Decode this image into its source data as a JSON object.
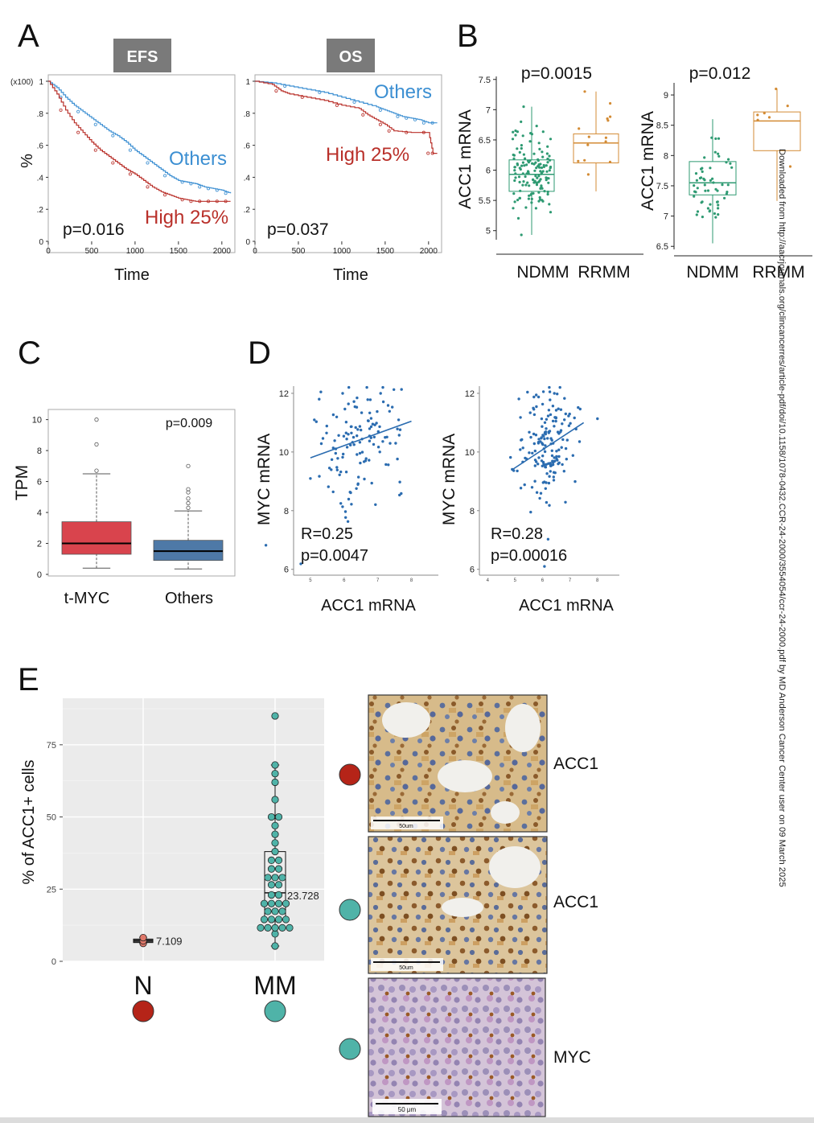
{
  "panel_letters": [
    "A",
    "B",
    "C",
    "D",
    "E"
  ],
  "colors": {
    "others_blue": "#3c8fd2",
    "high_red": "#b9302a",
    "ndmm_green": "#2e9a72",
    "rrmm_orange": "#d38b34",
    "tmyc_red": "#d9444d",
    "others_box": "#4e79a7",
    "scatter_blue": "#2b6cb0",
    "n_dot": "#b52418",
    "mm_dot": "#4fb3a8",
    "tag_gray": "#7a7a7a"
  },
  "side_note": "Downloaded from http://aacrjournals.org/clincancerres/article-pdf/doi/10.1158/1078-0432.CCR-24-2000/3554054/ccr-24-2000.pdf by MD Anderson Cancer Center user on 09 March 2025",
  "chart_data": [
    {
      "panel": "A",
      "type": "line",
      "tag": "EFS",
      "xlabel": "Time",
      "ylabel": "%",
      "y_multiplier_label": "(x100)",
      "xlim": [
        0,
        2150
      ],
      "ylim": [
        0,
        1
      ],
      "x_ticks": [
        "0",
        "500",
        "1000",
        "1500",
        "2000"
      ],
      "y_ticks": [
        "0",
        ".2",
        ".4",
        ".6",
        ".8",
        "1"
      ],
      "pvalue": "p=0.016",
      "series": [
        {
          "name": "Others",
          "color": "#3c8fd2",
          "x": [
            0,
            100,
            200,
            300,
            400,
            500,
            600,
            700,
            800,
            900,
            1000,
            1100,
            1200,
            1300,
            1400,
            1500,
            1600,
            1700,
            1800,
            1900,
            2000,
            2100
          ],
          "y": [
            1.0,
            0.96,
            0.9,
            0.85,
            0.81,
            0.77,
            0.73,
            0.69,
            0.66,
            0.62,
            0.57,
            0.53,
            0.49,
            0.45,
            0.41,
            0.38,
            0.37,
            0.36,
            0.34,
            0.33,
            0.32,
            0.3
          ]
        },
        {
          "name": "High 25%",
          "color": "#b9302a",
          "x": [
            0,
            100,
            200,
            300,
            400,
            500,
            600,
            700,
            800,
            900,
            1000,
            1100,
            1200,
            1300,
            1400,
            1500,
            1600,
            1700,
            1800,
            1900,
            2000,
            2100
          ],
          "y": [
            1.0,
            0.92,
            0.82,
            0.74,
            0.68,
            0.62,
            0.57,
            0.53,
            0.49,
            0.45,
            0.42,
            0.38,
            0.34,
            0.31,
            0.29,
            0.27,
            0.26,
            0.25,
            0.25,
            0.25,
            0.25,
            0.25
          ]
        }
      ]
    },
    {
      "panel": "A",
      "type": "line",
      "tag": "OS",
      "xlabel": "Time",
      "ylabel": "",
      "xlim": [
        0,
        2150
      ],
      "ylim": [
        0,
        1
      ],
      "x_ticks": [
        "0",
        "500",
        "1000",
        "1500",
        "2000"
      ],
      "y_ticks": [
        "0",
        ".2",
        ".4",
        ".6",
        ".8",
        "1"
      ],
      "pvalue": "p=0.037",
      "series": [
        {
          "name": "Others",
          "color": "#3c8fd2",
          "x": [
            0,
            200,
            400,
            600,
            800,
            1000,
            1200,
            1400,
            1500,
            1600,
            1700,
            1800,
            1900,
            2000,
            2100
          ],
          "y": [
            1.0,
            0.99,
            0.97,
            0.95,
            0.93,
            0.9,
            0.87,
            0.84,
            0.82,
            0.8,
            0.78,
            0.77,
            0.76,
            0.74,
            0.74
          ]
        },
        {
          "name": "High 25%",
          "color": "#b9302a",
          "x": [
            0,
            200,
            300,
            400,
            600,
            800,
            1000,
            1200,
            1300,
            1400,
            1500,
            1600,
            1800,
            2000,
            2050,
            2100
          ],
          "y": [
            1.0,
            0.98,
            0.94,
            0.92,
            0.9,
            0.88,
            0.85,
            0.83,
            0.79,
            0.76,
            0.73,
            0.69,
            0.68,
            0.68,
            0.55,
            0.55
          ]
        }
      ]
    },
    {
      "panel": "B",
      "type": "box",
      "ylabel": "ACC1 mRNA",
      "pvalue": "p=0.0015",
      "ylim": [
        4.85,
        7.55
      ],
      "y_ticks": [
        "5",
        "5.5",
        "6",
        "6.5",
        "7",
        "7.5"
      ],
      "categories": [
        "NDMM",
        "RRMM"
      ],
      "boxes": [
        {
          "name": "NDMM",
          "color": "#2e9a72",
          "q1": 5.65,
          "median": 5.93,
          "q3": 6.17,
          "whisker_low": 4.93,
          "whisker_high": 7.05,
          "n_points": 140
        },
        {
          "name": "RRMM",
          "color": "#d38b34",
          "q1": 6.12,
          "median": 6.45,
          "q3": 6.6,
          "whisker_low": 5.65,
          "whisker_high": 7.3,
          "n_points": 14
        }
      ]
    },
    {
      "panel": "B",
      "type": "box",
      "ylabel": "ACC1 mRNA",
      "pvalue": "p=0.012",
      "ylim": [
        6.45,
        9.2
      ],
      "y_ticks": [
        "6.5",
        "7",
        "7.5",
        "8",
        "8.5",
        "9"
      ],
      "categories": [
        "NDMM",
        "RRMM"
      ],
      "boxes": [
        {
          "name": "NDMM",
          "color": "#2e9a72",
          "q1": 7.35,
          "median": 7.55,
          "q3": 7.9,
          "whisker_low": 6.55,
          "whisker_high": 8.6,
          "n_points": 55
        },
        {
          "name": "RRMM",
          "color": "#d38b34",
          "q1": 8.08,
          "median": 8.57,
          "q3": 8.72,
          "whisker_low": 7.25,
          "whisker_high": 9.1,
          "n_points": 7
        }
      ]
    },
    {
      "panel": "C",
      "type": "box",
      "ylabel": "TPM",
      "pvalue": "p=0.009",
      "ylim": [
        0,
        10.5
      ],
      "y_ticks": [
        "0",
        "2",
        "4",
        "6",
        "8",
        "10"
      ],
      "categories": [
        "t-MYC",
        "Others"
      ],
      "boxes": [
        {
          "name": "t-MYC",
          "color": "#d9444d",
          "q1": 1.3,
          "median": 2.0,
          "q3": 3.4,
          "whisker_low": 0.4,
          "whisker_high": 6.5,
          "outliers": [
            6.7,
            8.4,
            10.0
          ]
        },
        {
          "name": "Others",
          "color": "#4e79a7",
          "q1": 0.9,
          "median": 1.5,
          "q3": 2.2,
          "whisker_low": 0.35,
          "whisker_high": 4.1,
          "outliers": [
            4.3,
            4.6,
            4.9,
            5.3,
            5.5,
            7.0
          ]
        }
      ]
    },
    {
      "panel": "D",
      "type": "scatter",
      "xlabel": "ACC1 mRNA",
      "ylabel": "MYC mRNA",
      "xlim": [
        4.5,
        8.8
      ],
      "ylim": [
        5.8,
        12.3
      ],
      "x_ticks": [
        "5",
        "6",
        "7",
        "8"
      ],
      "y_ticks": [
        "6",
        "8",
        "10",
        "12"
      ],
      "r_label": "R=0.25",
      "pvalue": "p=0.0047",
      "fit": {
        "x": [
          5.0,
          8.0
        ],
        "y": [
          9.8,
          11.05
        ]
      },
      "n_points": 130
    },
    {
      "panel": "D",
      "type": "scatter",
      "xlabel": "ACC1 mRNA",
      "ylabel": "MYC mRNA",
      "xlim": [
        3.7,
        8.8
      ],
      "ylim": [
        5.8,
        12.3
      ],
      "x_ticks": [
        "4",
        "5",
        "6",
        "7",
        "8"
      ],
      "y_ticks": [
        "6",
        "8",
        "10",
        "12"
      ],
      "r_label": "R=0.28",
      "pvalue": "p=0.00016",
      "fit": {
        "x": [
          4.9,
          7.5
        ],
        "y": [
          9.4,
          11.0
        ]
      },
      "n_points": 170
    },
    {
      "panel": "E",
      "type": "box",
      "ylabel": "% of ACC1+ cells",
      "ylim": [
        0,
        90
      ],
      "y_ticks": [
        "0",
        "25",
        "50",
        "75"
      ],
      "categories": [
        "N",
        "MM"
      ],
      "boxes": [
        {
          "name": "N",
          "color": "#e0786a",
          "q1": 6.5,
          "median": 7.109,
          "q3": 7.7,
          "whisker_low": 6.2,
          "whisker_high": 8.3,
          "points": [
            6.2,
            7.1,
            8.2
          ],
          "median_label": "7.109"
        },
        {
          "name": "MM",
          "color": "#4fb3a8",
          "q1": 14.5,
          "median": 23.728,
          "q3": 38.0,
          "whisker_low": 5.3,
          "whisker_high": 68.0,
          "points": [
            5.3,
            9.5,
            11.6,
            11.6,
            11.6,
            11.6,
            11.6,
            14.5,
            14.5,
            14.5,
            14.5,
            17.3,
            17.3,
            17.3,
            20.0,
            20.0,
            20.0,
            20.0,
            23.0,
            23.0,
            26.5,
            26.5,
            29.0,
            29.0,
            29.0,
            32.0,
            32.0,
            35.0,
            35.0,
            38.0,
            41.0,
            44.0,
            47.0,
            50.0,
            50.0,
            56.0,
            62.0,
            65.0,
            68.0,
            85.0
          ],
          "median_label": "23.728"
        }
      ]
    }
  ],
  "panel_e_images": {
    "labels": [
      "ACC1",
      "ACC1",
      "MYC"
    ],
    "scale_bars": [
      "50um",
      "50um",
      "50 μm"
    ],
    "row_dot_colors": [
      "#b52418",
      "#4fb3a8",
      "#4fb3a8"
    ]
  }
}
